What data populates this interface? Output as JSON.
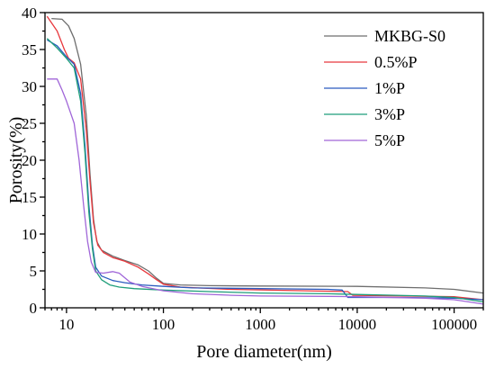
{
  "chart_data": {
    "type": "line",
    "title": "",
    "xlabel": "Pore diameter(nm)",
    "ylabel": "Porosity(%)",
    "x_scale": "log",
    "xlim": [
      6,
      200000
    ],
    "ylim": [
      0,
      40
    ],
    "x_ticks": [
      10,
      100,
      1000,
      10000,
      100000
    ],
    "x_tick_labels": [
      "10",
      "100",
      "1000",
      "10000",
      "100000"
    ],
    "y_ticks": [
      0,
      5,
      10,
      15,
      20,
      25,
      30,
      35,
      40
    ],
    "y_tick_labels": [
      "0",
      "5",
      "10",
      "15",
      "20",
      "25",
      "30",
      "35",
      "40"
    ],
    "grid": false,
    "legend_position": "top-right",
    "series": [
      {
        "name": "MKBG-S0",
        "color": "#6e6e6e",
        "points": [
          [
            7,
            39.2
          ],
          [
            9,
            39.1
          ],
          [
            10.5,
            38.2
          ],
          [
            12,
            36.5
          ],
          [
            14,
            33
          ],
          [
            16,
            26
          ],
          [
            17.5,
            18
          ],
          [
            19,
            12
          ],
          [
            20.5,
            9
          ],
          [
            23,
            7.8
          ],
          [
            30,
            7
          ],
          [
            40,
            6.4
          ],
          [
            55,
            5.8
          ],
          [
            70,
            5
          ],
          [
            85,
            4
          ],
          [
            100,
            3.3
          ],
          [
            150,
            3.1
          ],
          [
            300,
            3.0
          ],
          [
            1000,
            2.95
          ],
          [
            10000,
            2.9
          ],
          [
            50000,
            2.7
          ],
          [
            100000,
            2.5
          ],
          [
            200000,
            2.0
          ]
        ]
      },
      {
        "name": "0.5%P",
        "color": "#e8383d",
        "points": [
          [
            6.3,
            39.5
          ],
          [
            8,
            37.5
          ],
          [
            9.5,
            35
          ],
          [
            10.5,
            33.8
          ],
          [
            12,
            33.2
          ],
          [
            14,
            31
          ],
          [
            16,
            24
          ],
          [
            17.5,
            17
          ],
          [
            19,
            11.5
          ],
          [
            21,
            8.5
          ],
          [
            24,
            7.5
          ],
          [
            30,
            6.8
          ],
          [
            40,
            6.3
          ],
          [
            55,
            5.5
          ],
          [
            70,
            4.6
          ],
          [
            85,
            3.8
          ],
          [
            100,
            3.2
          ],
          [
            150,
            2.8
          ],
          [
            500,
            2.5
          ],
          [
            3000,
            2.3
          ],
          [
            8000,
            2.2
          ],
          [
            9000,
            1.7
          ],
          [
            30000,
            1.6
          ],
          [
            100000,
            1.5
          ],
          [
            200000,
            1.1
          ]
        ]
      },
      {
        "name": "1%P",
        "color": "#2a5bbf",
        "points": [
          [
            6.3,
            36.3
          ],
          [
            8,
            35.5
          ],
          [
            10,
            34
          ],
          [
            12,
            33
          ],
          [
            14,
            29
          ],
          [
            15.5,
            22
          ],
          [
            17,
            14
          ],
          [
            18.5,
            8.5
          ],
          [
            20,
            5.5
          ],
          [
            23,
            4.3
          ],
          [
            30,
            3.7
          ],
          [
            40,
            3.4
          ],
          [
            60,
            3.1
          ],
          [
            100,
            2.9
          ],
          [
            200,
            2.7
          ],
          [
            1000,
            2.6
          ],
          [
            5000,
            2.5
          ],
          [
            7000,
            2.4
          ],
          [
            8000,
            1.4
          ],
          [
            30000,
            1.4
          ],
          [
            100000,
            1.3
          ],
          [
            200000,
            1.1
          ]
        ]
      },
      {
        "name": "3%P",
        "color": "#1f9e7a",
        "points": [
          [
            6.3,
            36.5
          ],
          [
            8,
            35.2
          ],
          [
            10,
            33.8
          ],
          [
            12,
            32.5
          ],
          [
            14,
            28
          ],
          [
            15.5,
            21
          ],
          [
            17,
            13
          ],
          [
            18.5,
            8
          ],
          [
            20,
            5
          ],
          [
            23,
            3.8
          ],
          [
            28,
            3.1
          ],
          [
            35,
            2.8
          ],
          [
            50,
            2.6
          ],
          [
            100,
            2.4
          ],
          [
            300,
            2.2
          ],
          [
            1000,
            2.0
          ],
          [
            5000,
            1.9
          ],
          [
            10000,
            1.8
          ],
          [
            50000,
            1.6
          ],
          [
            100000,
            1.4
          ],
          [
            200000,
            0.8
          ]
        ]
      },
      {
        "name": "5%P",
        "color": "#a066d8",
        "points": [
          [
            6.3,
            31
          ],
          [
            8,
            31
          ],
          [
            9,
            29.5
          ],
          [
            10,
            28
          ],
          [
            12,
            25
          ],
          [
            13.5,
            20
          ],
          [
            15,
            14
          ],
          [
            16.5,
            9
          ],
          [
            18,
            6.2
          ],
          [
            20,
            4.8
          ],
          [
            24,
            4.7
          ],
          [
            30,
            4.9
          ],
          [
            35,
            4.7
          ],
          [
            45,
            3.5
          ],
          [
            60,
            2.9
          ],
          [
            100,
            2.3
          ],
          [
            200,
            1.9
          ],
          [
            500,
            1.7
          ],
          [
            1000,
            1.6
          ],
          [
            5000,
            1.55
          ],
          [
            10000,
            1.5
          ],
          [
            50000,
            1.3
          ],
          [
            100000,
            1.1
          ],
          [
            200000,
            0.5
          ]
        ]
      }
    ]
  }
}
